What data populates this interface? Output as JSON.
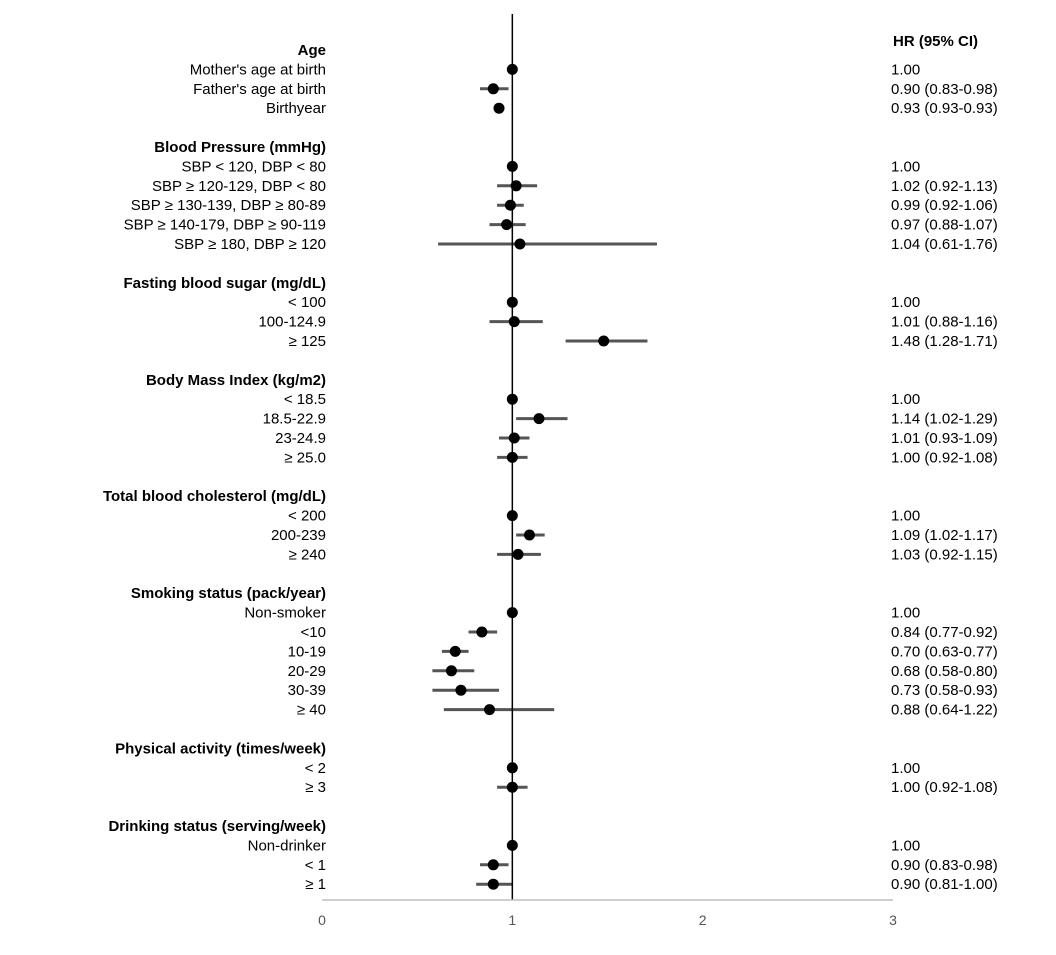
{
  "chart_data": {
    "type": "forest",
    "hr_header": "HR (95% CI)",
    "x_ticks": [
      "0",
      "1",
      "2",
      "3"
    ],
    "xlim": [
      0,
      3
    ],
    "reference_value": 1,
    "groups": [
      {
        "title": "Age",
        "rows": [
          {
            "label": "Mother's age at birth",
            "hr": 1.0,
            "lo": null,
            "hi": null,
            "text": "1.00"
          },
          {
            "label": "Father's age at birth",
            "hr": 0.9,
            "lo": 0.83,
            "hi": 0.98,
            "text": "0.90 (0.83-0.98)"
          },
          {
            "label": "Birthyear",
            "hr": 0.93,
            "lo": 0.93,
            "hi": 0.93,
            "text": "0.93 (0.93-0.93)"
          }
        ]
      },
      {
        "title": "Blood Pressure (mmHg)",
        "rows": [
          {
            "label": "SBP < 120, DBP < 80",
            "hr": 1.0,
            "lo": null,
            "hi": null,
            "text": "1.00"
          },
          {
            "label": "SBP ≥ 120-129, DBP < 80",
            "hr": 1.02,
            "lo": 0.92,
            "hi": 1.13,
            "text": "1.02 (0.92-1.13)"
          },
          {
            "label": "SBP ≥ 130-139, DBP ≥ 80-89",
            "hr": 0.99,
            "lo": 0.92,
            "hi": 1.06,
            "text": "0.99 (0.92-1.06)"
          },
          {
            "label": "SBP ≥ 140-179, DBP ≥ 90-119",
            "hr": 0.97,
            "lo": 0.88,
            "hi": 1.07,
            "text": "0.97 (0.88-1.07)"
          },
          {
            "label": "SBP ≥ 180, DBP ≥ 120",
            "hr": 1.04,
            "lo": 0.61,
            "hi": 1.76,
            "text": "1.04 (0.61-1.76)"
          }
        ]
      },
      {
        "title": "Fasting blood sugar (mg/dL)",
        "rows": [
          {
            "label": "< 100",
            "hr": 1.0,
            "lo": null,
            "hi": null,
            "text": "1.00"
          },
          {
            "label": "100-124.9",
            "hr": 1.01,
            "lo": 0.88,
            "hi": 1.16,
            "text": "1.01 (0.88-1.16)"
          },
          {
            "label": "≥ 125",
            "hr": 1.48,
            "lo": 1.28,
            "hi": 1.71,
            "text": "1.48 (1.28-1.71)"
          }
        ]
      },
      {
        "title": "Body Mass Index (kg/m2)",
        "rows": [
          {
            "label": "< 18.5",
            "hr": 1.0,
            "lo": null,
            "hi": null,
            "text": "1.00"
          },
          {
            "label": "18.5-22.9",
            "hr": 1.14,
            "lo": 1.02,
            "hi": 1.29,
            "text": "1.14 (1.02-1.29)"
          },
          {
            "label": "23-24.9",
            "hr": 1.01,
            "lo": 0.93,
            "hi": 1.09,
            "text": "1.01 (0.93-1.09)"
          },
          {
            "label": "≥ 25.0",
            "hr": 1.0,
            "lo": 0.92,
            "hi": 1.08,
            "text": "1.00 (0.92-1.08)"
          }
        ]
      },
      {
        "title": "Total blood cholesterol (mg/dL)",
        "rows": [
          {
            "label": "< 200",
            "hr": 1.0,
            "lo": null,
            "hi": null,
            "text": "1.00"
          },
          {
            "label": "200-239",
            "hr": 1.09,
            "lo": 1.02,
            "hi": 1.17,
            "text": "1.09 (1.02-1.17)"
          },
          {
            "label": "≥ 240",
            "hr": 1.03,
            "lo": 0.92,
            "hi": 1.15,
            "text": "1.03 (0.92-1.15)"
          }
        ]
      },
      {
        "title": "Smoking status (pack/year)",
        "rows": [
          {
            "label": "Non-smoker",
            "hr": 1.0,
            "lo": null,
            "hi": null,
            "text": "1.00"
          },
          {
            "label": "<10",
            "hr": 0.84,
            "lo": 0.77,
            "hi": 0.92,
            "text": "0.84 (0.77-0.92)"
          },
          {
            "label": "10-19",
            "hr": 0.7,
            "lo": 0.63,
            "hi": 0.77,
            "text": "0.70 (0.63-0.77)"
          },
          {
            "label": "20-29",
            "hr": 0.68,
            "lo": 0.58,
            "hi": 0.8,
            "text": "0.68 (0.58-0.80)"
          },
          {
            "label": "30-39",
            "hr": 0.73,
            "lo": 0.58,
            "hi": 0.93,
            "text": "0.73 (0.58-0.93)"
          },
          {
            "label": "≥ 40",
            "hr": 0.88,
            "lo": 0.64,
            "hi": 1.22,
            "text": "0.88 (0.64-1.22)"
          }
        ]
      },
      {
        "title": "Physical activity (times/week)",
        "rows": [
          {
            "label": "< 2",
            "hr": 1.0,
            "lo": null,
            "hi": null,
            "text": "1.00"
          },
          {
            "label": "≥ 3",
            "hr": 1.0,
            "lo": 0.92,
            "hi": 1.08,
            "text": "1.00 (0.92-1.08)"
          }
        ]
      },
      {
        "title": "Drinking status (serving/week)",
        "rows": [
          {
            "label": "Non-drinker",
            "hr": 1.0,
            "lo": null,
            "hi": null,
            "text": "1.00"
          },
          {
            "label": "< 1",
            "hr": 0.9,
            "lo": 0.83,
            "hi": 0.98,
            "text": "0.90 (0.83-0.98)"
          },
          {
            "label": "≥ 1",
            "hr": 0.9,
            "lo": 0.81,
            "hi": 1.0,
            "text": "0.90 (0.81-1.00)"
          }
        ]
      }
    ],
    "colors": {
      "point": "#000000",
      "ci_line": "#555555",
      "ref_line": "#000000",
      "axis": "#bfbfbf",
      "tick_text": "#555555"
    }
  }
}
